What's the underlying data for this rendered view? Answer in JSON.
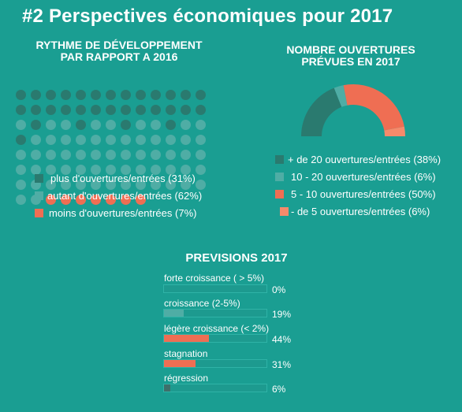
{
  "title": "#2 Perspectives économiques pour 2017",
  "rythme": {
    "heading_line1": "RYTHME DE DÉVELOPPEMENT",
    "heading_line2": "PAR RAPPORT A 2016",
    "colors": {
      "plus": "#2a7a6f",
      "autant": "#4fada5",
      "moins": "#ef6e53"
    },
    "legend": [
      {
        "label": "plus d'ouvertures/entrées (31%)",
        "color": "#2a7a6f",
        "dots": 31
      },
      {
        "label": "autant d'ouvertures/entrées (62%)",
        "color": "#4fada5",
        "dots": 62
      },
      {
        "label": "moins d'ouvertures/entrées (7%)",
        "color": "#ef6e53",
        "dots": 7
      }
    ]
  },
  "ouvertures": {
    "heading_line1": "NOMBRE OUVERTURES",
    "heading_line2": "PRÉVUES EN 2017",
    "legend": [
      {
        "label": "+ de 20 ouvertures/entrées (38%)",
        "color": "#2a7a6f",
        "value": 38
      },
      {
        "label": "10 - 20 ouvertures/entrées (6%)",
        "color": "#4fada5",
        "value": 6
      },
      {
        "label": "5 - 10 ouvertures/entrées (50%)",
        "color": "#ef6e53",
        "value": 50
      },
      {
        "label": "- de 5 ouvertures/entrées (6%)",
        "color": "#f58a6b",
        "value": 6
      }
    ]
  },
  "previsions": {
    "heading": "PREVISIONS 2017",
    "bars": [
      {
        "label": "forte croissance ( > 5%)",
        "pct_label": "0%",
        "value": 0,
        "color": "#4fada5"
      },
      {
        "label": "croissance (2-5%)",
        "pct_label": "19%",
        "value": 19,
        "color": "#4fada5"
      },
      {
        "label": "légère croissance (< 2%)",
        "pct_label": "44%",
        "value": 44,
        "color": "#ef6e53"
      },
      {
        "label": "stagnation",
        "pct_label": "31%",
        "value": 31,
        "color": "#ef6e53"
      },
      {
        "label": "régression",
        "pct_label": "6%",
        "value": 6,
        "color": "#3e6f6a"
      }
    ]
  }
}
